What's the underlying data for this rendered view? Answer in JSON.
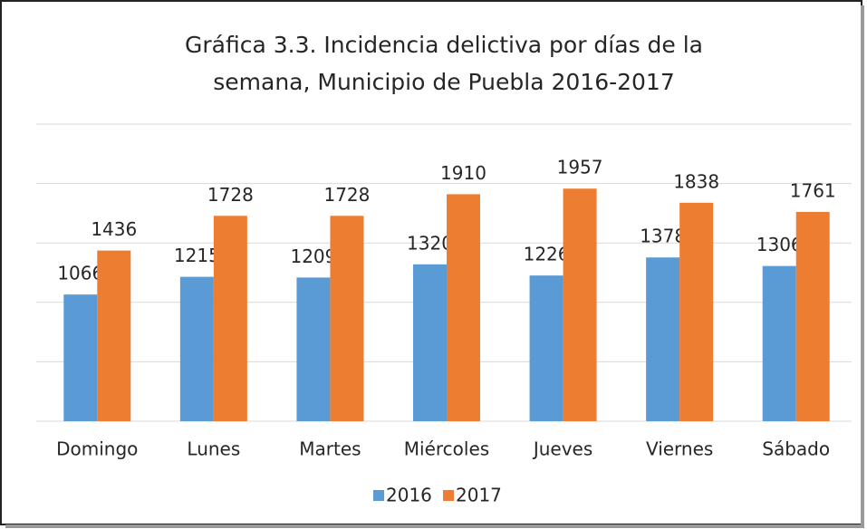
{
  "chart_data": {
    "type": "bar",
    "title": [
      "Gráfica 3.3. Incidencia delictiva por días de la",
      "semana, Municipio de Puebla 2016-2017"
    ],
    "categories": [
      "Domingo",
      "Lunes",
      "Martes",
      "Miércoles",
      "Jueves",
      "Viernes",
      "Sábado"
    ],
    "series": [
      {
        "name": "2016",
        "color": "#5b9bd5",
        "values": [
          1066,
          1215,
          1209,
          1320,
          1226,
          1378,
          1306
        ]
      },
      {
        "name": "2017",
        "color": "#ed7d31",
        "values": [
          1436,
          1728,
          1728,
          1910,
          1957,
          1838,
          1761
        ]
      }
    ],
    "ylim": [
      0,
      2500
    ],
    "yticks": [
      0,
      500,
      1000,
      1500,
      2000,
      2500
    ],
    "grid": true,
    "legend": "bottom"
  }
}
